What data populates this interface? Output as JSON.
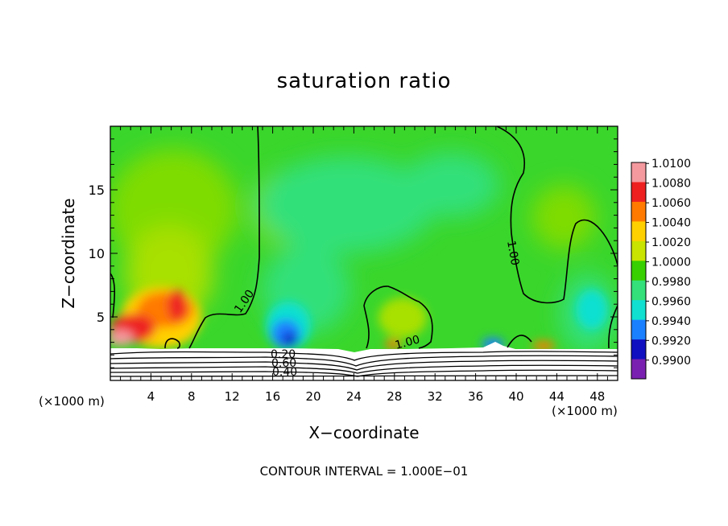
{
  "chart_data": {
    "type": "heatmap",
    "title": "saturation ratio",
    "xlabel": "X−coordinate",
    "ylabel": "Z−coordinate",
    "x_unit_label": "(×1000 m)",
    "footer": "CONTOUR INTERVAL = 1.000E−01",
    "xlim": [
      0,
      50
    ],
    "ylim": [
      0,
      20
    ],
    "x_ticks": [
      4,
      8,
      12,
      16,
      20,
      24,
      28,
      32,
      36,
      40,
      44,
      48
    ],
    "y_ticks": [
      5,
      10,
      15
    ],
    "colorbar": {
      "levels": [
        "1.0100",
        "1.0080",
        "1.0060",
        "1.0040",
        "1.0020",
        "1.0000",
        "0.9980",
        "0.9960",
        "0.9940",
        "0.9920",
        "0.9900"
      ],
      "colors": [
        "#f4999e",
        "#ee2020",
        "#ff7a00",
        "#ffd000",
        "#c8e400",
        "#38d000",
        "#33e07a",
        "#11e0d0",
        "#1a80ff",
        "#1010c0",
        "#7a20b0"
      ]
    },
    "contour_labels": [
      "1.00",
      "1.00",
      "1.00",
      "0.20",
      "0.60",
      "0.40"
    ],
    "background_color": "#3ad62b",
    "terrain_color": "#ffffff"
  }
}
